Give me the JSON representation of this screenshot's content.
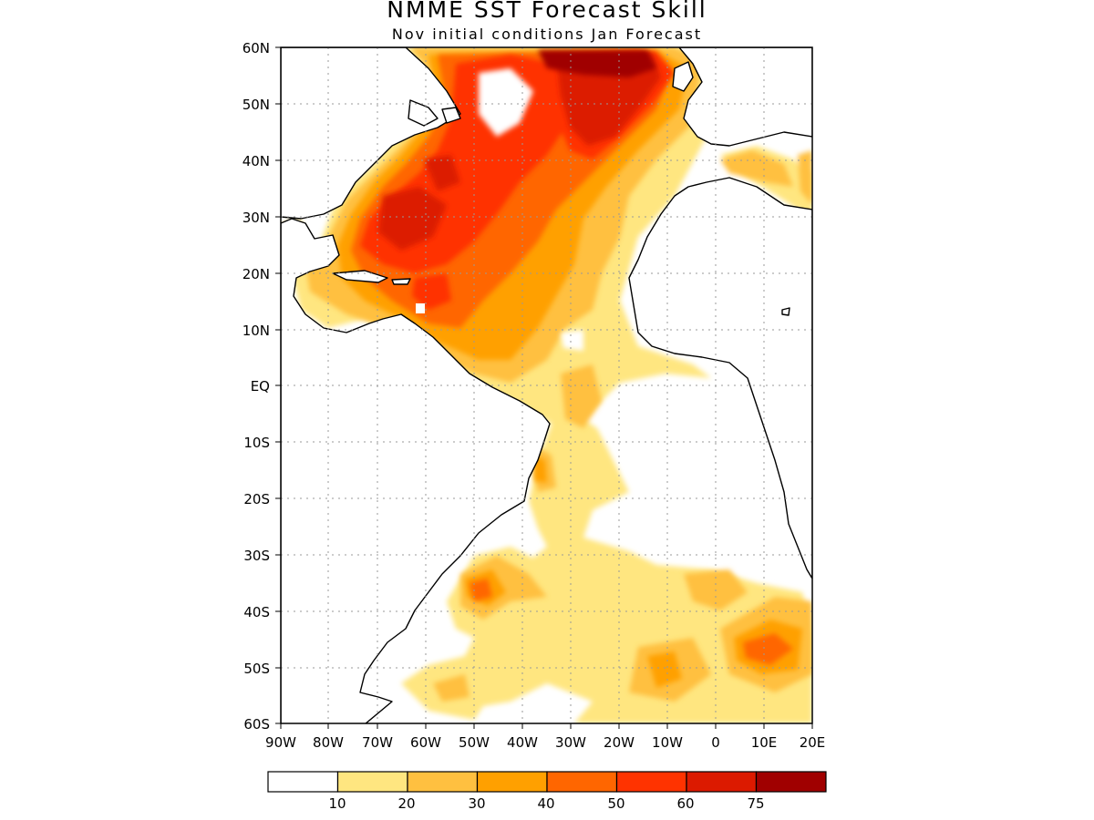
{
  "title": "NMME SST Forecast Skill",
  "subtitle": "Nov initial conditions  Jan Forecast",
  "lat_labels": [
    "60N",
    "50N",
    "40N",
    "30N",
    "20N",
    "10N",
    "EQ",
    "10S",
    "20S",
    "30S",
    "40S",
    "50S",
    "60S"
  ],
  "lon_labels": [
    "90W",
    "80W",
    "70W",
    "60W",
    "50W",
    "40W",
    "30W",
    "20W",
    "10W",
    "0",
    "10E",
    "20E"
  ],
  "colorbar": {
    "tick_labels": [
      "10",
      "20",
      "30",
      "40",
      "50",
      "60",
      "75"
    ],
    "colors": [
      "#ffffff",
      "#ffe680",
      "#ffc040",
      "#ffa000",
      "#ff6600",
      "#ff3300",
      "#dc1a00",
      "#a00000"
    ]
  },
  "map": {
    "lon_range": [
      -90,
      20
    ],
    "lat_range": [
      -60,
      60
    ],
    "grid": true,
    "field": "SST forecast skill"
  }
}
